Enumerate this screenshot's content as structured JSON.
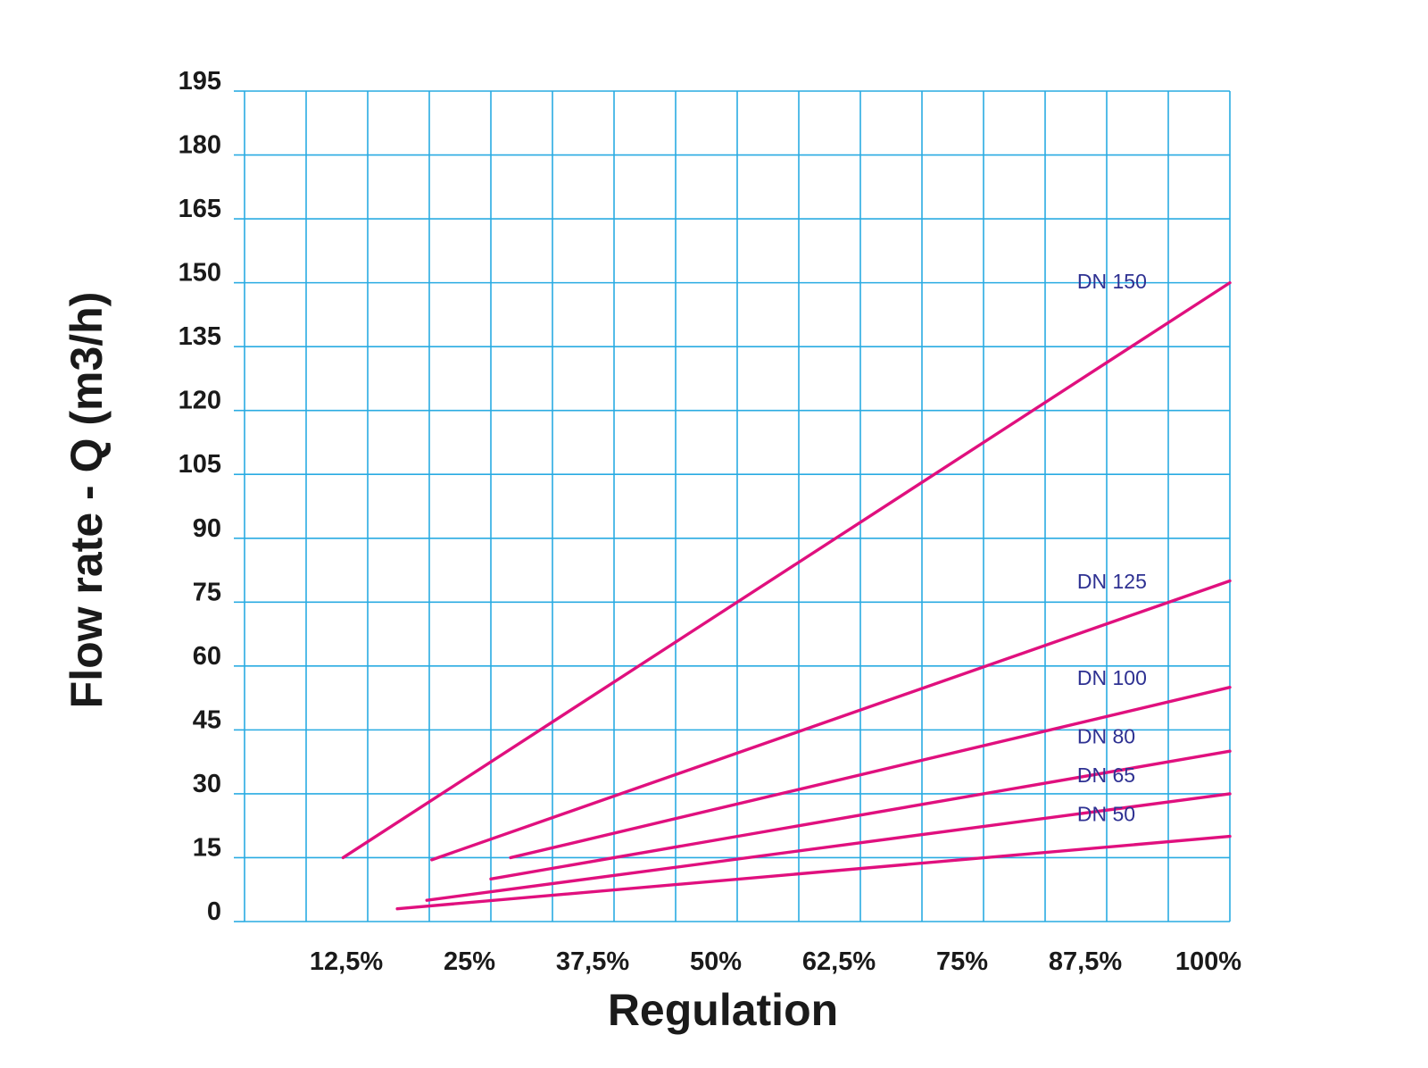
{
  "chart_data": {
    "type": "line",
    "xlabel": "Regulation",
    "ylabel": "Flow rate - Q (m3/h)",
    "xlim": [
      0,
      100
    ],
    "ylim": [
      0,
      195
    ],
    "x_ticks": [
      {
        "value": 12.5,
        "label": "12,5%"
      },
      {
        "value": 25,
        "label": "25%"
      },
      {
        "value": 37.5,
        "label": "37,5%"
      },
      {
        "value": 50,
        "label": "50%"
      },
      {
        "value": 62.5,
        "label": "62,5%"
      },
      {
        "value": 75,
        "label": "75%"
      },
      {
        "value": 87.5,
        "label": "87,5%"
      },
      {
        "value": 100,
        "label": "100%"
      }
    ],
    "y_ticks": [
      {
        "value": 0,
        "label": "0"
      },
      {
        "value": 15,
        "label": "15"
      },
      {
        "value": 30,
        "label": "30"
      },
      {
        "value": 45,
        "label": "45"
      },
      {
        "value": 60,
        "label": "60"
      },
      {
        "value": 75,
        "label": "75"
      },
      {
        "value": 90,
        "label": "90"
      },
      {
        "value": 105,
        "label": "105"
      },
      {
        "value": 120,
        "label": "120"
      },
      {
        "value": 135,
        "label": "135"
      },
      {
        "value": 150,
        "label": "150"
      },
      {
        "value": 165,
        "label": "165"
      },
      {
        "value": 180,
        "label": "180"
      },
      {
        "value": 195,
        "label": "195"
      }
    ],
    "grid": true,
    "grid_x_step": 6.25,
    "grid_y_step": 15,
    "grid_color": "#29abe2",
    "line_color": "#e0107e",
    "label_color": "#2e3192",
    "series": [
      {
        "name": "DN 150",
        "x": [
          10,
          100
        ],
        "y": [
          15,
          150
        ]
      },
      {
        "name": "DN 125",
        "x": [
          19,
          100
        ],
        "y": [
          14.5,
          80
        ]
      },
      {
        "name": "DN 100",
        "x": [
          27,
          100
        ],
        "y": [
          15,
          55
        ]
      },
      {
        "name": "DN 80",
        "x": [
          25,
          100
        ],
        "y": [
          10,
          40
        ]
      },
      {
        "name": "DN 65",
        "x": [
          18.5,
          100
        ],
        "y": [
          5,
          30
        ]
      },
      {
        "name": "DN 50",
        "x": [
          15.5,
          100
        ],
        "y": [
          3,
          20
        ]
      }
    ]
  }
}
